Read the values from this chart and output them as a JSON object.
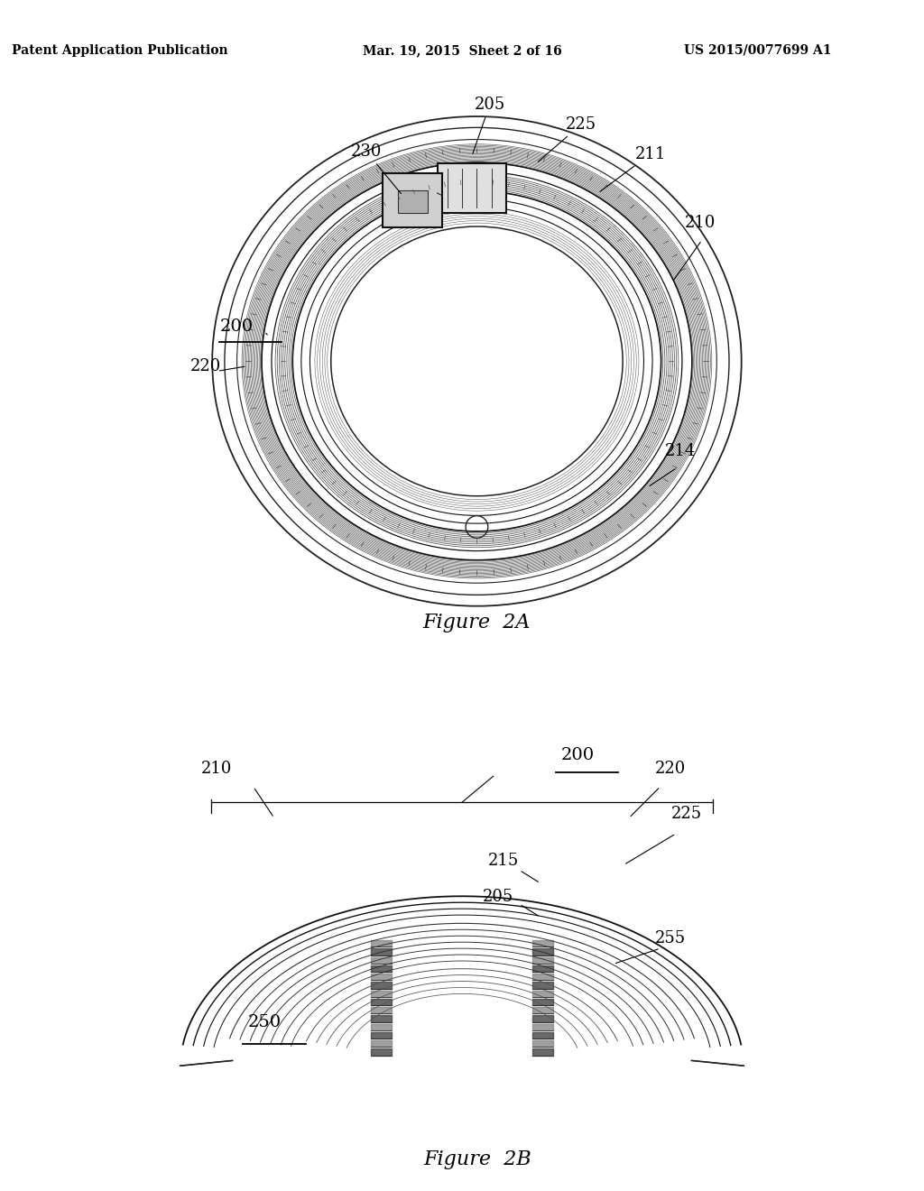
{
  "background_color": "#ffffff",
  "header_left": "Patent Application Publication",
  "header_mid": "Mar. 19, 2015  Sheet 2 of 16",
  "header_right": "US 2015/0077699 A1",
  "fig2a_title": "Figure  2A",
  "fig2b_title": "Figure  2B"
}
